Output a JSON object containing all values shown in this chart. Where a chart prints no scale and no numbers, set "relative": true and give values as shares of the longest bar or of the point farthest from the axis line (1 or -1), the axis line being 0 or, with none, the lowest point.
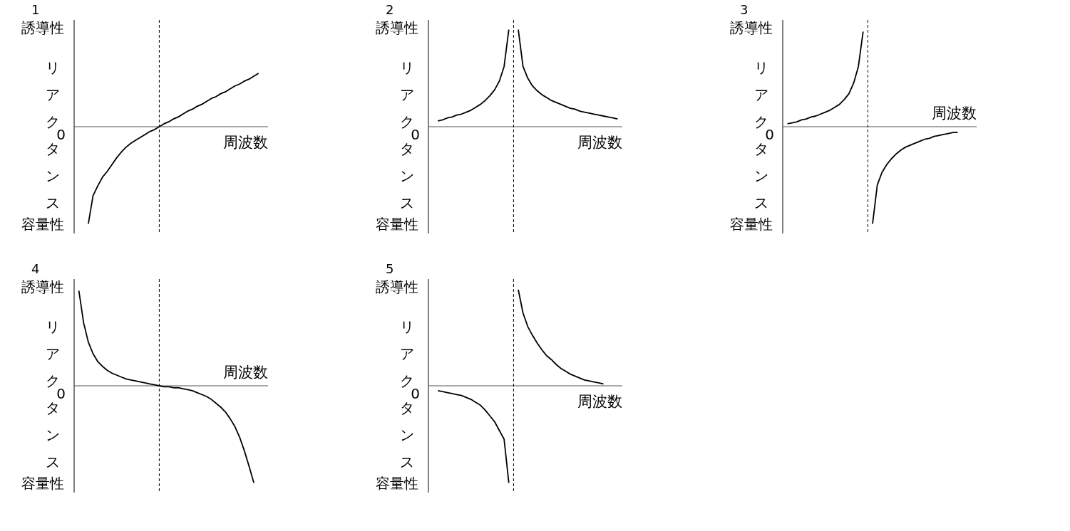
{
  "chart_data": [
    {
      "type": "line",
      "title": "1",
      "ylabel": "リアクタンス",
      "xlabel": "周波数",
      "relative": true,
      "annotations": [
        "誘導性",
        "容量性",
        "0"
      ],
      "categories": [
        null,
        null,
        null,
        null,
        null,
        null,
        null,
        null,
        null,
        null,
        null,
        null,
        null,
        null,
        null,
        null,
        null,
        null,
        null,
        null,
        null,
        null,
        null,
        null,
        null,
        null,
        null,
        null,
        null,
        null,
        null,
        null,
        null,
        null,
        null,
        null,
        null,
        null,
        null,
        null,
        null,
        null
      ],
      "series": [
        {
          "color": "#000000",
          "values": [
            null,
            null,
            null,
            -1,
            -0.71,
            -0.61,
            -0.52,
            -0.46,
            -0.39,
            -0.32,
            -0.26,
            -0.21,
            -0.17,
            -0.14,
            -0.11,
            -0.08,
            -0.05,
            -0.03,
            0,
            0.03,
            0.05,
            0.08,
            0.1,
            0.13,
            0.16,
            0.18,
            0.21,
            0.23,
            0.26,
            0.29,
            0.31,
            0.34,
            0.36,
            0.39,
            0.42,
            0.44,
            0.47,
            0.49,
            0.52,
            0.55,
            null,
            null
          ]
        }
      ]
    },
    {
      "type": "line",
      "title": "2",
      "ylabel": "リアクタンス",
      "xlabel": "周波数",
      "relative": true,
      "annotations": [
        "誘導性",
        "容量性",
        "0"
      ],
      "categories": [
        null,
        null,
        null,
        null,
        null,
        null,
        null,
        null,
        null,
        null,
        null,
        null,
        null,
        null,
        null,
        null,
        null,
        null,
        null,
        null,
        null,
        null,
        null,
        null,
        null,
        null,
        null,
        null,
        null,
        null,
        null,
        null,
        null,
        null,
        null,
        null,
        null,
        null,
        null,
        null,
        null,
        null
      ],
      "series": [
        {
          "color": "#000000",
          "values": [
            null,
            null,
            0.06,
            0.07,
            0.09,
            0.1,
            0.12,
            0.13,
            0.15,
            0.17,
            0.2,
            0.23,
            0.27,
            0.32,
            0.38,
            0.47,
            0.62,
            1.0,
            null,
            null,
            null,
            null,
            null,
            null,
            null,
            null,
            null,
            null,
            null,
            null,
            null,
            null,
            null,
            null,
            null,
            null,
            null,
            null,
            null,
            null,
            null,
            null
          ]
        },
        {
          "color": "#000000",
          "values": [
            null,
            null,
            null,
            null,
            null,
            null,
            null,
            null,
            null,
            null,
            null,
            null,
            null,
            null,
            null,
            null,
            null,
            null,
            null,
            1.0,
            0.62,
            0.5,
            0.42,
            0.37,
            0.33,
            0.3,
            0.27,
            0.25,
            0.23,
            0.21,
            0.19,
            0.18,
            0.16,
            0.15,
            0.14,
            0.13,
            0.12,
            0.11,
            0.1,
            0.09,
            0.08,
            null
          ]
        }
      ]
    },
    {
      "type": "line",
      "title": "3",
      "ylabel": "リアクタンス",
      "xlabel": "周波数",
      "relative": true,
      "annotations": [
        "誘導性",
        "容量性",
        "0"
      ],
      "categories": [
        null,
        null,
        null,
        null,
        null,
        null,
        null,
        null,
        null,
        null,
        null,
        null,
        null,
        null,
        null,
        null,
        null,
        null,
        null,
        null,
        null,
        null,
        null,
        null,
        null,
        null,
        null,
        null,
        null,
        null,
        null,
        null,
        null,
        null,
        null,
        null,
        null,
        null,
        null,
        null,
        null,
        null
      ],
      "series": [
        {
          "color": "#000000",
          "values": [
            null,
            0.03,
            0.04,
            0.05,
            0.07,
            0.08,
            0.1,
            0.11,
            0.13,
            0.15,
            0.17,
            0.2,
            0.23,
            0.28,
            0.34,
            0.45,
            0.62,
            0.98,
            null,
            null,
            null,
            null,
            null,
            null,
            null,
            null,
            null,
            null,
            null,
            null,
            null,
            null,
            null,
            null,
            null,
            null,
            null,
            null,
            null,
            null,
            null,
            null
          ]
        },
        {
          "color": "#000000",
          "values": [
            null,
            null,
            null,
            null,
            null,
            null,
            null,
            null,
            null,
            null,
            null,
            null,
            null,
            null,
            null,
            null,
            null,
            null,
            null,
            -1,
            -0.6,
            -0.47,
            -0.39,
            -0.33,
            -0.28,
            -0.24,
            -0.21,
            -0.19,
            -0.17,
            -0.15,
            -0.13,
            -0.12,
            -0.1,
            -0.09,
            -0.08,
            -0.07,
            -0.06,
            -0.06,
            null,
            null,
            null,
            null
          ]
        }
      ]
    },
    {
      "type": "line",
      "title": "4",
      "ylabel": "リアクタンス",
      "xlabel": "周波数",
      "relative": true,
      "annotations": [
        "誘導性",
        "容量性",
        "0"
      ],
      "categories": [
        null,
        null,
        null,
        null,
        null,
        null,
        null,
        null,
        null,
        null,
        null,
        null,
        null,
        null,
        null,
        null,
        null,
        null,
        null,
        null,
        null,
        null,
        null,
        null,
        null,
        null,
        null,
        null,
        null,
        null,
        null,
        null,
        null,
        null,
        null,
        null,
        null,
        null,
        null,
        null,
        null,
        null
      ],
      "series": [
        {
          "color": "#000000",
          "values": [
            null,
            0.98,
            0.65,
            0.45,
            0.33,
            0.25,
            0.2,
            0.16,
            0.13,
            0.11,
            0.09,
            0.07,
            0.06,
            0.05,
            0.04,
            0.03,
            0.02,
            0.01,
            0,
            -0.01,
            -0.01,
            -0.02,
            -0.02,
            -0.03,
            -0.04,
            -0.05,
            -0.07,
            -0.09,
            -0.11,
            -0.14,
            -0.18,
            -0.22,
            -0.27,
            -0.34,
            -0.42,
            -0.53,
            -0.67,
            -0.83,
            -1,
            null,
            null,
            null
          ]
        }
      ]
    },
    {
      "type": "line",
      "title": "5",
      "ylabel": "リアクタンス",
      "xlabel": "周波数",
      "relative": true,
      "annotations": [
        "誘導性",
        "容量性",
        "0"
      ],
      "categories": [
        null,
        null,
        null,
        null,
        null,
        null,
        null,
        null,
        null,
        null,
        null,
        null,
        null,
        null,
        null,
        null,
        null,
        null,
        null,
        null,
        null,
        null,
        null,
        null,
        null,
        null,
        null,
        null,
        null,
        null,
        null,
        null,
        null,
        null,
        null,
        null,
        null,
        null,
        null,
        null,
        null,
        null
      ],
      "series": [
        {
          "color": "#000000",
          "values": [
            null,
            null,
            -0.05,
            -0.06,
            -0.07,
            -0.08,
            -0.09,
            -0.1,
            -0.12,
            -0.14,
            -0.17,
            -0.2,
            -0.25,
            -0.31,
            -0.37,
            -0.46,
            -0.55,
            -1,
            null,
            null,
            null,
            null,
            null,
            null,
            null,
            null,
            null,
            null,
            null,
            null,
            null,
            null,
            null,
            null,
            null,
            null,
            null,
            null,
            null,
            null,
            null,
            null
          ]
        },
        {
          "color": "#000000",
          "values": [
            null,
            null,
            null,
            null,
            null,
            null,
            null,
            null,
            null,
            null,
            null,
            null,
            null,
            null,
            null,
            null,
            null,
            null,
            null,
            0.99,
            0.75,
            0.61,
            0.52,
            0.44,
            0.37,
            0.31,
            0.27,
            0.22,
            0.18,
            0.15,
            0.12,
            0.1,
            0.08,
            0.06,
            0.05,
            0.04,
            0.03,
            0.02,
            null,
            null,
            null,
            null
          ]
        }
      ]
    }
  ]
}
